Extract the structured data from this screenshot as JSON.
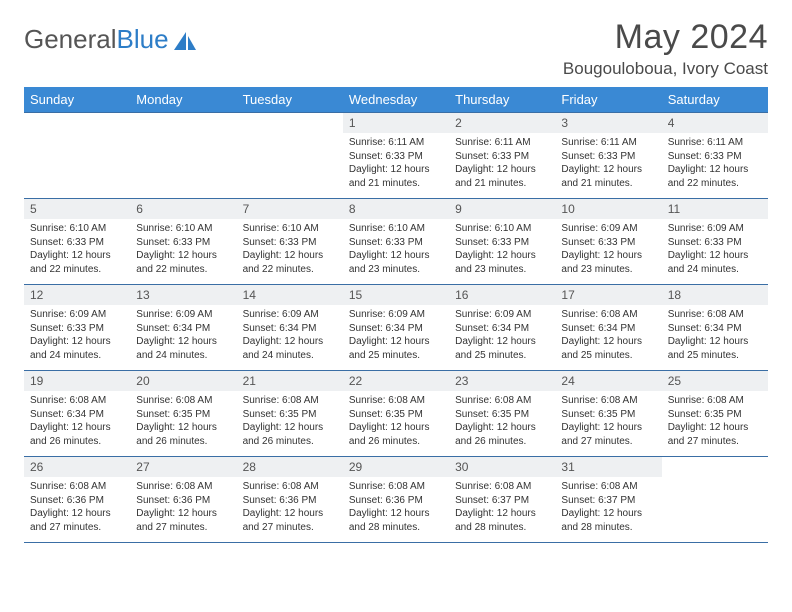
{
  "brand": {
    "part1": "General",
    "part2": "Blue"
  },
  "title": "May 2024",
  "location": "Bougouloboua, Ivory Coast",
  "colors": {
    "header_bg": "#3a89d4",
    "header_text": "#ffffff",
    "cell_border": "#3a6ea5",
    "daynum_bg": "#eef0f2",
    "brand_blue": "#2d7dc7",
    "text": "#333333",
    "background": "#ffffff"
  },
  "typography": {
    "title_fontsize": 34,
    "location_fontsize": 17,
    "dayhead_fontsize": 13,
    "daynum_fontsize": 12,
    "body_fontsize": 10
  },
  "weekdays": [
    "Sunday",
    "Monday",
    "Tuesday",
    "Wednesday",
    "Thursday",
    "Friday",
    "Saturday"
  ],
  "weeks": [
    [
      {
        "day": "",
        "sunrise": "",
        "sunset": "",
        "daylight": ""
      },
      {
        "day": "",
        "sunrise": "",
        "sunset": "",
        "daylight": ""
      },
      {
        "day": "",
        "sunrise": "",
        "sunset": "",
        "daylight": ""
      },
      {
        "day": "1",
        "sunrise": "Sunrise: 6:11 AM",
        "sunset": "Sunset: 6:33 PM",
        "daylight": "Daylight: 12 hours and 21 minutes."
      },
      {
        "day": "2",
        "sunrise": "Sunrise: 6:11 AM",
        "sunset": "Sunset: 6:33 PM",
        "daylight": "Daylight: 12 hours and 21 minutes."
      },
      {
        "day": "3",
        "sunrise": "Sunrise: 6:11 AM",
        "sunset": "Sunset: 6:33 PM",
        "daylight": "Daylight: 12 hours and 21 minutes."
      },
      {
        "day": "4",
        "sunrise": "Sunrise: 6:11 AM",
        "sunset": "Sunset: 6:33 PM",
        "daylight": "Daylight: 12 hours and 22 minutes."
      }
    ],
    [
      {
        "day": "5",
        "sunrise": "Sunrise: 6:10 AM",
        "sunset": "Sunset: 6:33 PM",
        "daylight": "Daylight: 12 hours and 22 minutes."
      },
      {
        "day": "6",
        "sunrise": "Sunrise: 6:10 AM",
        "sunset": "Sunset: 6:33 PM",
        "daylight": "Daylight: 12 hours and 22 minutes."
      },
      {
        "day": "7",
        "sunrise": "Sunrise: 6:10 AM",
        "sunset": "Sunset: 6:33 PM",
        "daylight": "Daylight: 12 hours and 22 minutes."
      },
      {
        "day": "8",
        "sunrise": "Sunrise: 6:10 AM",
        "sunset": "Sunset: 6:33 PM",
        "daylight": "Daylight: 12 hours and 23 minutes."
      },
      {
        "day": "9",
        "sunrise": "Sunrise: 6:10 AM",
        "sunset": "Sunset: 6:33 PM",
        "daylight": "Daylight: 12 hours and 23 minutes."
      },
      {
        "day": "10",
        "sunrise": "Sunrise: 6:09 AM",
        "sunset": "Sunset: 6:33 PM",
        "daylight": "Daylight: 12 hours and 23 minutes."
      },
      {
        "day": "11",
        "sunrise": "Sunrise: 6:09 AM",
        "sunset": "Sunset: 6:33 PM",
        "daylight": "Daylight: 12 hours and 24 minutes."
      }
    ],
    [
      {
        "day": "12",
        "sunrise": "Sunrise: 6:09 AM",
        "sunset": "Sunset: 6:33 PM",
        "daylight": "Daylight: 12 hours and 24 minutes."
      },
      {
        "day": "13",
        "sunrise": "Sunrise: 6:09 AM",
        "sunset": "Sunset: 6:34 PM",
        "daylight": "Daylight: 12 hours and 24 minutes."
      },
      {
        "day": "14",
        "sunrise": "Sunrise: 6:09 AM",
        "sunset": "Sunset: 6:34 PM",
        "daylight": "Daylight: 12 hours and 24 minutes."
      },
      {
        "day": "15",
        "sunrise": "Sunrise: 6:09 AM",
        "sunset": "Sunset: 6:34 PM",
        "daylight": "Daylight: 12 hours and 25 minutes."
      },
      {
        "day": "16",
        "sunrise": "Sunrise: 6:09 AM",
        "sunset": "Sunset: 6:34 PM",
        "daylight": "Daylight: 12 hours and 25 minutes."
      },
      {
        "day": "17",
        "sunrise": "Sunrise: 6:08 AM",
        "sunset": "Sunset: 6:34 PM",
        "daylight": "Daylight: 12 hours and 25 minutes."
      },
      {
        "day": "18",
        "sunrise": "Sunrise: 6:08 AM",
        "sunset": "Sunset: 6:34 PM",
        "daylight": "Daylight: 12 hours and 25 minutes."
      }
    ],
    [
      {
        "day": "19",
        "sunrise": "Sunrise: 6:08 AM",
        "sunset": "Sunset: 6:34 PM",
        "daylight": "Daylight: 12 hours and 26 minutes."
      },
      {
        "day": "20",
        "sunrise": "Sunrise: 6:08 AM",
        "sunset": "Sunset: 6:35 PM",
        "daylight": "Daylight: 12 hours and 26 minutes."
      },
      {
        "day": "21",
        "sunrise": "Sunrise: 6:08 AM",
        "sunset": "Sunset: 6:35 PM",
        "daylight": "Daylight: 12 hours and 26 minutes."
      },
      {
        "day": "22",
        "sunrise": "Sunrise: 6:08 AM",
        "sunset": "Sunset: 6:35 PM",
        "daylight": "Daylight: 12 hours and 26 minutes."
      },
      {
        "day": "23",
        "sunrise": "Sunrise: 6:08 AM",
        "sunset": "Sunset: 6:35 PM",
        "daylight": "Daylight: 12 hours and 26 minutes."
      },
      {
        "day": "24",
        "sunrise": "Sunrise: 6:08 AM",
        "sunset": "Sunset: 6:35 PM",
        "daylight": "Daylight: 12 hours and 27 minutes."
      },
      {
        "day": "25",
        "sunrise": "Sunrise: 6:08 AM",
        "sunset": "Sunset: 6:35 PM",
        "daylight": "Daylight: 12 hours and 27 minutes."
      }
    ],
    [
      {
        "day": "26",
        "sunrise": "Sunrise: 6:08 AM",
        "sunset": "Sunset: 6:36 PM",
        "daylight": "Daylight: 12 hours and 27 minutes."
      },
      {
        "day": "27",
        "sunrise": "Sunrise: 6:08 AM",
        "sunset": "Sunset: 6:36 PM",
        "daylight": "Daylight: 12 hours and 27 minutes."
      },
      {
        "day": "28",
        "sunrise": "Sunrise: 6:08 AM",
        "sunset": "Sunset: 6:36 PM",
        "daylight": "Daylight: 12 hours and 27 minutes."
      },
      {
        "day": "29",
        "sunrise": "Sunrise: 6:08 AM",
        "sunset": "Sunset: 6:36 PM",
        "daylight": "Daylight: 12 hours and 28 minutes."
      },
      {
        "day": "30",
        "sunrise": "Sunrise: 6:08 AM",
        "sunset": "Sunset: 6:37 PM",
        "daylight": "Daylight: 12 hours and 28 minutes."
      },
      {
        "day": "31",
        "sunrise": "Sunrise: 6:08 AM",
        "sunset": "Sunset: 6:37 PM",
        "daylight": "Daylight: 12 hours and 28 minutes."
      },
      {
        "day": "",
        "sunrise": "",
        "sunset": "",
        "daylight": ""
      }
    ]
  ]
}
